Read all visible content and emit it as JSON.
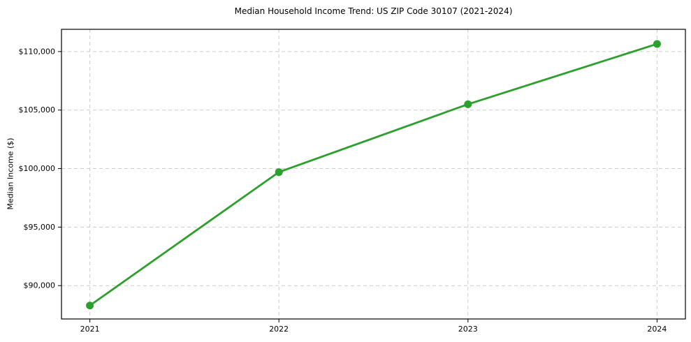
{
  "figure": {
    "background": "#ffffff",
    "text_color": "#000000",
    "spine_color": "#000000"
  },
  "chart_data": {
    "type": "line",
    "title": "Median Household Income Trend: US ZIP Code 30107 (2021-2024)",
    "xlabel": "",
    "ylabel": "Median Income ($)",
    "categories": [
      "2021",
      "2022",
      "2023",
      "2024"
    ],
    "values": [
      88300,
      99700,
      105500,
      110650
    ],
    "line_color": "#2ca02c",
    "marker": "circle",
    "marker_color": "#2ca02c",
    "ylim": [
      87150,
      111900
    ],
    "xlim_units": [
      -0.15,
      3.15
    ],
    "yticks": [
      {
        "value": 90000,
        "label": "$90,000"
      },
      {
        "value": 95000,
        "label": "$95,000"
      },
      {
        "value": 100000,
        "label": "$100,000"
      },
      {
        "value": 105000,
        "label": "$105,000"
      },
      {
        "value": 110000,
        "label": "$110,000"
      }
    ],
    "grid": true,
    "grid_style": "dashed",
    "grid_color": "#cccccc",
    "legend_position": "none"
  }
}
